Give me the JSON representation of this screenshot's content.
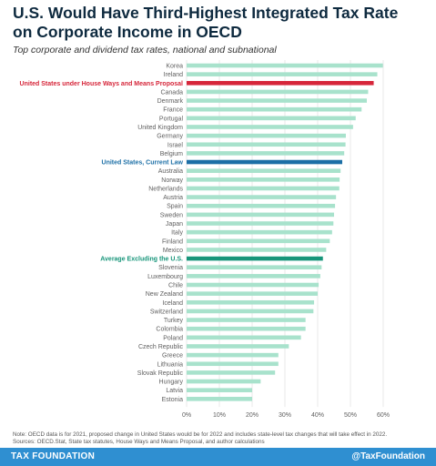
{
  "title_line1": "U.S. Would Have Third-Highest Integrated Tax Rate",
  "title_line2": "on Corporate Income in OECD",
  "subtitle": "Top corporate and dividend tax rates, national and subnational",
  "note_line1": "Note: OECD data is for 2021, proposed change in United States would be for 2022 and includes state-level tax changes that will take effect in 2022.",
  "note_line2": "Sources: OECD.Stat, State tax statutes, House Ways and Means Proposal, and author calculations",
  "footer": {
    "brand": "TAX FOUNDATION",
    "handle": "@TaxFoundation"
  },
  "colors": {
    "default_bar": "#a8e2cc",
    "proposal": "#d6263a",
    "current_law": "#1c6fa6",
    "average": "#17957a",
    "label": "#5f5f5f",
    "grid": "#e4e4e4"
  },
  "chart_data": {
    "type": "bar",
    "orientation": "horizontal",
    "xlim": [
      0,
      60
    ],
    "x_ticks": [
      "0%",
      "10%",
      "20%",
      "30%",
      "40%",
      "50%",
      "60%"
    ],
    "grid": true,
    "categories": [
      "Korea",
      "Ireland",
      "United States under House Ways and Means Proposal",
      "Canada",
      "Denmark",
      "France",
      "Portugal",
      "United Kingdom",
      "Germany",
      "Israel",
      "Belgium",
      "United States, Current Law",
      "Australia",
      "Norway",
      "Netherlands",
      "Austria",
      "Spain",
      "Sweden",
      "Japan",
      "Italy",
      "Finland",
      "Mexico",
      "Average Excluding the U.S.",
      "Slovenia",
      "Luxembourg",
      "Chile",
      "New Zealand",
      "Iceland",
      "Switzerland",
      "Turkey",
      "Colombia",
      "Poland",
      "Czech Republic",
      "Greece",
      "Lithuania",
      "Slovak Republic",
      "Hungary",
      "Latvia",
      "Estonia"
    ],
    "values": [
      59.9,
      58.2,
      57.1,
      55.4,
      55.0,
      53.4,
      51.6,
      50.8,
      48.6,
      48.5,
      48.1,
      47.5,
      47.0,
      46.7,
      46.6,
      45.6,
      45.3,
      45.0,
      44.8,
      44.4,
      43.7,
      42.6,
      41.6,
      41.2,
      40.8,
      40.3,
      40.0,
      38.9,
      38.7,
      36.3,
      36.3,
      34.9,
      31.2,
      28.0,
      28.0,
      27.0,
      22.6,
      20.0,
      20.0
    ],
    "highlights": {
      "United States under House Ways and Means Proposal": "proposal",
      "United States, Current Law": "current_law",
      "Average Excluding the U.S.": "average"
    }
  }
}
